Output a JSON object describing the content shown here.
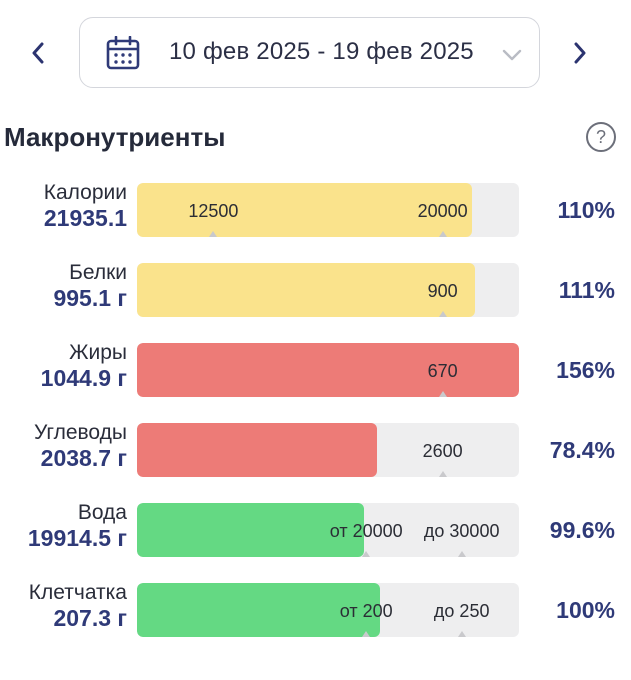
{
  "date_nav": {
    "prev_label": "‹",
    "next_label": "›",
    "range": "10 фев 2025 - 19 фев 2025"
  },
  "section": {
    "title": "Макронутриенты",
    "help_icon": "?"
  },
  "colors": {
    "yellow": "#fae38c",
    "red": "#ed7b77",
    "green": "#64d983",
    "track": "#eeeeef",
    "accent": "#2f3a78"
  },
  "nutrients": [
    {
      "name": "Калории",
      "value": "21935.1",
      "percent": "110%",
      "fill_fraction": 0.878,
      "color": "#fae38c",
      "markers": [
        {
          "label": "12500",
          "at": 0.2
        },
        {
          "label": "20000",
          "at": 0.8
        }
      ]
    },
    {
      "name": "Белки",
      "value": "995.1 г",
      "percent": "111%",
      "fill_fraction": 0.885,
      "color": "#fae38c",
      "markers": [
        {
          "label": "900",
          "at": 0.8
        }
      ]
    },
    {
      "name": "Жиры",
      "value": "1044.9 г",
      "percent": "156%",
      "fill_fraction": 1.0,
      "color": "#ed7b77",
      "markers": [
        {
          "label": "670",
          "at": 0.8
        }
      ]
    },
    {
      "name": "Углеводы",
      "value": "2038.7 г",
      "percent": "78.4%",
      "fill_fraction": 0.627,
      "color": "#ed7b77",
      "markers": [
        {
          "label": "2600",
          "at": 0.8
        }
      ]
    },
    {
      "name": "Вода",
      "value": "19914.5 г",
      "percent": "99.6%",
      "fill_fraction": 0.595,
      "color": "#64d983",
      "markers": [
        {
          "label": "от 20000",
          "at": 0.6
        },
        {
          "label": "до 30000",
          "at": 0.85
        }
      ]
    },
    {
      "name": "Клетчатка",
      "value": "207.3 г",
      "percent": "100%",
      "fill_fraction": 0.635,
      "color": "#64d983",
      "markers": [
        {
          "label": "от 200",
          "at": 0.6
        },
        {
          "label": "до 250",
          "at": 0.85
        }
      ]
    }
  ]
}
